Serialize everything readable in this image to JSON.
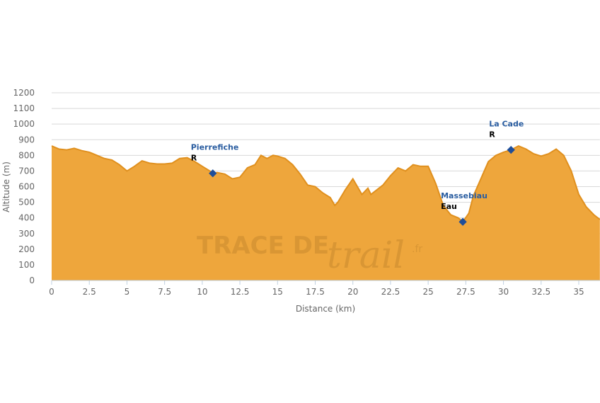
{
  "chart_data": {
    "type": "area",
    "x_label": "Distance (km)",
    "y_label": "Altitude (m)",
    "x": [
      0,
      0.5,
      1,
      1.5,
      2,
      2.5,
      3,
      3.5,
      4,
      4.5,
      5,
      5.5,
      6,
      6.5,
      7,
      7.5,
      8,
      8.5,
      9,
      9.5,
      10,
      10.5,
      10.7,
      11,
      11.5,
      12,
      12.5,
      13,
      13.5,
      13.9,
      14.3,
      14.7,
      15,
      15.5,
      16,
      16.5,
      17,
      17.5,
      18,
      18.5,
      18.8,
      19,
      19.5,
      20,
      20.3,
      20.6,
      21,
      21.2,
      21.6,
      22,
      22.5,
      23,
      23.5,
      24,
      24.5,
      25,
      25.5,
      26,
      26.5,
      27,
      27.3,
      27.7,
      28,
      28.5,
      29,
      29.5,
      30,
      30.5,
      31,
      31.5,
      32,
      32.5,
      33,
      33.5,
      34,
      34.5,
      35,
      35.5,
      36,
      36.4
    ],
    "values": [
      860,
      840,
      835,
      845,
      830,
      820,
      800,
      780,
      770,
      740,
      700,
      730,
      765,
      750,
      745,
      745,
      750,
      780,
      785,
      760,
      730,
      700,
      685,
      690,
      680,
      650,
      660,
      720,
      740,
      800,
      780,
      800,
      795,
      780,
      740,
      680,
      610,
      600,
      560,
      530,
      480,
      500,
      580,
      650,
      600,
      550,
      590,
      550,
      580,
      610,
      670,
      720,
      700,
      740,
      730,
      730,
      620,
      480,
      420,
      400,
      375,
      430,
      540,
      650,
      760,
      800,
      820,
      835,
      860,
      840,
      810,
      795,
      810,
      840,
      800,
      700,
      550,
      470,
      420,
      390
    ],
    "color": "#eea63c",
    "line_color": "#e0901e",
    "xlim": [
      0,
      36.4
    ],
    "ylim": [
      0,
      1200
    ],
    "xticks": [
      0,
      2.5,
      5,
      7.5,
      10,
      12.5,
      15,
      17.5,
      20,
      22.5,
      25,
      27.5,
      30,
      32.5,
      35
    ],
    "yticks": [
      0,
      100,
      200,
      300,
      400,
      500,
      600,
      700,
      800,
      900,
      1000,
      1100,
      1200
    ],
    "grid": true,
    "markers": [
      {
        "name": "Pierrefiche",
        "note": "R",
        "x": 10.7,
        "y": 685
      },
      {
        "name": "Massebiau",
        "note": "Eau",
        "x": 27.3,
        "y": 375
      },
      {
        "name": "La Cade",
        "note": "R",
        "x": 30.5,
        "y": 835
      }
    ],
    "marker_color": "#1f4e99",
    "watermark": [
      "TRACE DE",
      "trail",
      ".fr"
    ]
  }
}
